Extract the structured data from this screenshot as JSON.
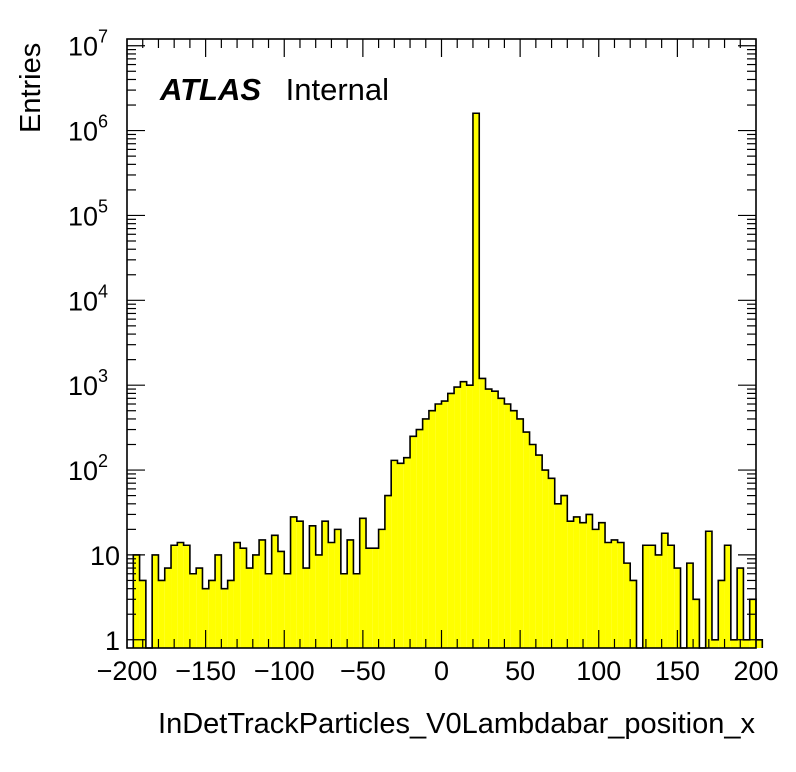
{
  "chart_data": {
    "type": "bar",
    "subtype": "histogram",
    "title": "",
    "xlabel": "InDetTrackParticles_V0Lambdabar_position_x",
    "ylabel": "Entries",
    "xlim": [
      -200,
      200
    ],
    "ylim": [
      0.8,
      12000000
    ],
    "yscale": "log",
    "bin_width": 4,
    "bin_start": -196,
    "x_ticks": [
      -200,
      -150,
      -100,
      -50,
      0,
      50,
      100,
      150,
      200
    ],
    "x_tick_labels": [
      "−200",
      "−150",
      "−100",
      "−50",
      "0",
      "50",
      "100",
      "150",
      "200"
    ],
    "y_ticks": [
      {
        "value": 1,
        "base": "1",
        "exp": ""
      },
      {
        "value": 10,
        "base": "10",
        "exp": ""
      },
      {
        "value": 100,
        "base": "10",
        "exp": "2"
      },
      {
        "value": 1000,
        "base": "10",
        "exp": "3"
      },
      {
        "value": 10000,
        "base": "10",
        "exp": "4"
      },
      {
        "value": 100000,
        "base": "10",
        "exp": "5"
      },
      {
        "value": 1000000,
        "base": "10",
        "exp": "6"
      },
      {
        "value": 10000000,
        "base": "10",
        "exp": "7"
      }
    ],
    "values": [
      10,
      5,
      0,
      10,
      5,
      7,
      13,
      14,
      13,
      6,
      7,
      4,
      5,
      10,
      4,
      5,
      14,
      12,
      7,
      10,
      15,
      6,
      17,
      11,
      6,
      28,
      25,
      7,
      22,
      10,
      25,
      14,
      20,
      6,
      15,
      6,
      27,
      12,
      12,
      20,
      50,
      130,
      120,
      140,
      250,
      300,
      400,
      500,
      600,
      650,
      800,
      950,
      1100,
      1000,
      1600000,
      1200,
      900,
      850,
      700,
      600,
      500,
      400,
      280,
      200,
      150,
      100,
      80,
      40,
      50,
      25,
      28,
      24,
      30,
      20,
      24,
      14,
      15,
      14,
      8,
      5,
      0,
      13,
      13,
      10,
      18,
      13,
      7,
      0,
      8,
      3,
      0,
      19,
      1,
      5,
      13,
      1,
      7,
      1,
      3,
      1
    ],
    "fill_color": "#ffff00",
    "line_color": "#000000",
    "legend": "none",
    "grid": false
  },
  "labels": {
    "atlas": "ATLAS",
    "status": "Internal"
  }
}
